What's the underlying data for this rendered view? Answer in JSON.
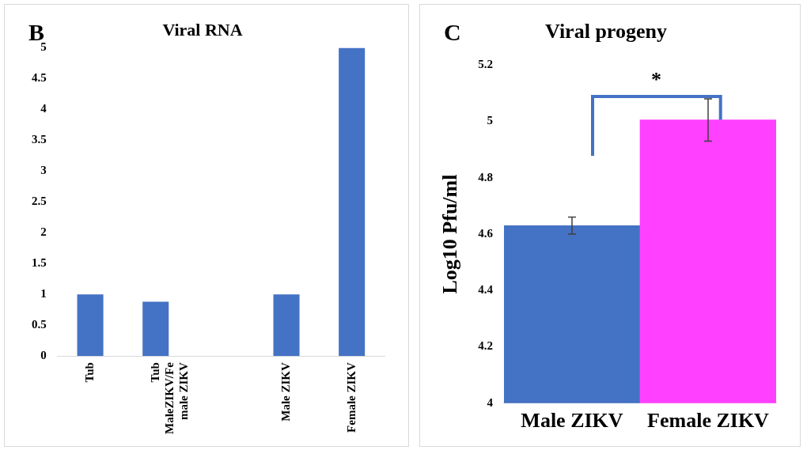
{
  "chart_data": [
    {
      "type": "bar",
      "title": "Viral RNA",
      "annotations": [
        "B"
      ],
      "categories": [
        "Tub",
        "Tub MaleZIKV/Female ZIKV",
        null,
        "Male ZIKV",
        "Female ZIKV"
      ],
      "values": [
        1,
        0.88,
        null,
        1,
        5
      ],
      "color": "#4472c4",
      "ylim": [
        0,
        5
      ],
      "yticks": [
        0,
        0.5,
        1,
        1.5,
        2,
        2.5,
        3,
        3.5,
        4,
        4.5,
        5
      ],
      "grid": false
    },
    {
      "type": "bar",
      "title": "Viral progeny",
      "ylabel": "Log10 Pfu/ml",
      "annotations": [
        "C",
        "*"
      ],
      "categories": [
        "Male ZIKV",
        "Female ZIKV"
      ],
      "values": [
        4.63,
        5.005
      ],
      "colors": [
        "#4472c4",
        "#ff40ff"
      ],
      "errors": [
        0.03,
        0.075
      ],
      "ylim": [
        4,
        5.2
      ],
      "yticks": [
        4,
        4.2,
        4.4,
        4.6,
        4.8,
        5,
        5.2
      ],
      "grid": false
    }
  ]
}
